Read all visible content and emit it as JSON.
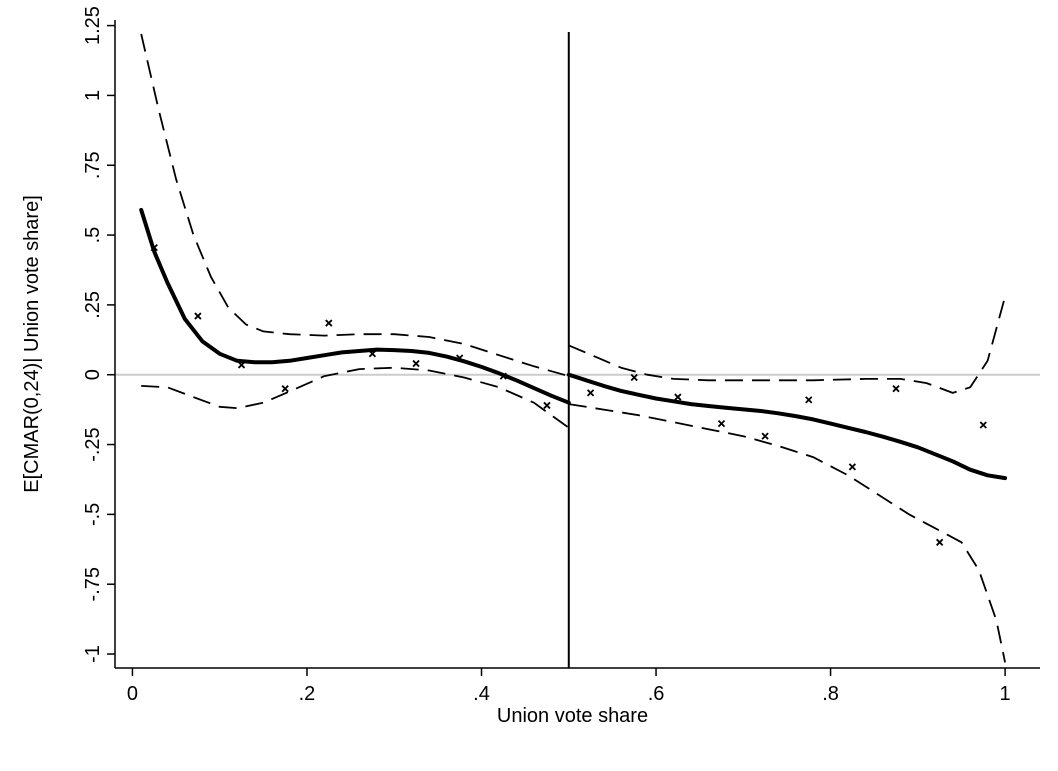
{
  "chart_data": {
    "type": "scatter",
    "title": "",
    "xlabel": "Union vote share",
    "ylabel": "E[CMAR(0,24)| Union vote share]",
    "xlim": [
      -0.02,
      1.04
    ],
    "ylim": [
      -1.05,
      1.27
    ],
    "x_ticks": [
      0,
      0.2,
      0.4,
      0.6,
      0.8,
      1
    ],
    "x_tick_labels": [
      "0",
      ".2",
      ".4",
      ".6",
      ".8",
      "1"
    ],
    "y_ticks": [
      -1,
      -0.75,
      -0.5,
      -0.25,
      0,
      0.25,
      0.5,
      0.75,
      1,
      1.25
    ],
    "y_tick_labels": [
      "-1",
      "-.75",
      "-.5",
      "-.25",
      "0",
      ".25",
      ".5",
      ".75",
      "1",
      "1.25"
    ],
    "threshold_x": 0.5,
    "reference_y": 0,
    "colors": {
      "line": "#000000",
      "reference": "#cccccc",
      "background": "#ffffff"
    },
    "series": [
      {
        "kind": "bin_means",
        "marker": "x",
        "points": [
          [
            0.025,
            0.455
          ],
          [
            0.075,
            0.21
          ],
          [
            0.125,
            0.035
          ],
          [
            0.175,
            -0.05
          ],
          [
            0.225,
            0.185
          ],
          [
            0.275,
            0.075
          ],
          [
            0.325,
            0.04
          ],
          [
            0.375,
            0.06
          ],
          [
            0.425,
            -0.005
          ],
          [
            0.475,
            -0.11
          ],
          [
            0.525,
            -0.065
          ],
          [
            0.575,
            -0.01
          ],
          [
            0.625,
            -0.08
          ],
          [
            0.675,
            -0.175
          ],
          [
            0.725,
            -0.22
          ],
          [
            0.775,
            -0.09
          ],
          [
            0.825,
            -0.33
          ],
          [
            0.875,
            -0.05
          ],
          [
            0.925,
            -0.6
          ],
          [
            0.975,
            -0.18
          ]
        ]
      },
      {
        "kind": "fit_left",
        "line": "solid",
        "points": [
          [
            0.01,
            0.59
          ],
          [
            0.025,
            0.44
          ],
          [
            0.04,
            0.33
          ],
          [
            0.06,
            0.2
          ],
          [
            0.08,
            0.12
          ],
          [
            0.1,
            0.075
          ],
          [
            0.12,
            0.05
          ],
          [
            0.14,
            0.045
          ],
          [
            0.16,
            0.045
          ],
          [
            0.18,
            0.05
          ],
          [
            0.2,
            0.06
          ],
          [
            0.22,
            0.07
          ],
          [
            0.24,
            0.08
          ],
          [
            0.26,
            0.085
          ],
          [
            0.28,
            0.09
          ],
          [
            0.3,
            0.088
          ],
          [
            0.32,
            0.085
          ],
          [
            0.34,
            0.078
          ],
          [
            0.36,
            0.065
          ],
          [
            0.38,
            0.048
          ],
          [
            0.4,
            0.028
          ],
          [
            0.42,
            0.005
          ],
          [
            0.44,
            -0.02
          ],
          [
            0.46,
            -0.048
          ],
          [
            0.48,
            -0.075
          ],
          [
            0.5,
            -0.1
          ]
        ]
      },
      {
        "kind": "fit_right",
        "line": "solid",
        "points": [
          [
            0.5,
            0.0
          ],
          [
            0.52,
            -0.02
          ],
          [
            0.54,
            -0.04
          ],
          [
            0.56,
            -0.058
          ],
          [
            0.58,
            -0.072
          ],
          [
            0.6,
            -0.085
          ],
          [
            0.62,
            -0.095
          ],
          [
            0.64,
            -0.105
          ],
          [
            0.66,
            -0.112
          ],
          [
            0.68,
            -0.118
          ],
          [
            0.7,
            -0.124
          ],
          [
            0.72,
            -0.13
          ],
          [
            0.74,
            -0.138
          ],
          [
            0.76,
            -0.148
          ],
          [
            0.78,
            -0.16
          ],
          [
            0.8,
            -0.175
          ],
          [
            0.82,
            -0.19
          ],
          [
            0.84,
            -0.205
          ],
          [
            0.86,
            -0.222
          ],
          [
            0.88,
            -0.24
          ],
          [
            0.9,
            -0.26
          ],
          [
            0.92,
            -0.285
          ],
          [
            0.94,
            -0.31
          ],
          [
            0.96,
            -0.34
          ],
          [
            0.98,
            -0.36
          ],
          [
            1.0,
            -0.37
          ]
        ]
      },
      {
        "kind": "ci_upper_left",
        "line": "dashed",
        "points": [
          [
            0.01,
            1.22
          ],
          [
            0.03,
            0.95
          ],
          [
            0.05,
            0.7
          ],
          [
            0.07,
            0.5
          ],
          [
            0.09,
            0.35
          ],
          [
            0.11,
            0.24
          ],
          [
            0.13,
            0.18
          ],
          [
            0.15,
            0.155
          ],
          [
            0.18,
            0.145
          ],
          [
            0.22,
            0.14
          ],
          [
            0.26,
            0.145
          ],
          [
            0.3,
            0.145
          ],
          [
            0.34,
            0.135
          ],
          [
            0.38,
            0.11
          ],
          [
            0.42,
            0.07
          ],
          [
            0.46,
            0.03
          ],
          [
            0.5,
            -0.005
          ]
        ]
      },
      {
        "kind": "ci_lower_left",
        "line": "dashed",
        "points": [
          [
            0.01,
            -0.04
          ],
          [
            0.04,
            -0.045
          ],
          [
            0.07,
            -0.08
          ],
          [
            0.1,
            -0.115
          ],
          [
            0.12,
            -0.12
          ],
          [
            0.15,
            -0.1
          ],
          [
            0.18,
            -0.06
          ],
          [
            0.22,
            -0.005
          ],
          [
            0.26,
            0.02
          ],
          [
            0.3,
            0.025
          ],
          [
            0.34,
            0.015
          ],
          [
            0.38,
            -0.01
          ],
          [
            0.42,
            -0.045
          ],
          [
            0.46,
            -0.1
          ],
          [
            0.5,
            -0.19
          ]
        ]
      },
      {
        "kind": "ci_upper_right",
        "line": "dashed",
        "points": [
          [
            0.5,
            0.105
          ],
          [
            0.53,
            0.065
          ],
          [
            0.56,
            0.025
          ],
          [
            0.59,
            0.0
          ],
          [
            0.62,
            -0.015
          ],
          [
            0.66,
            -0.02
          ],
          [
            0.72,
            -0.02
          ],
          [
            0.78,
            -0.02
          ],
          [
            0.84,
            -0.015
          ],
          [
            0.88,
            -0.015
          ],
          [
            0.91,
            -0.03
          ],
          [
            0.94,
            -0.065
          ],
          [
            0.96,
            -0.045
          ],
          [
            0.98,
            0.05
          ],
          [
            1.0,
            0.28
          ]
        ]
      },
      {
        "kind": "ci_lower_right",
        "line": "dashed",
        "points": [
          [
            0.5,
            -0.105
          ],
          [
            0.54,
            -0.125
          ],
          [
            0.58,
            -0.145
          ],
          [
            0.62,
            -0.17
          ],
          [
            0.66,
            -0.195
          ],
          [
            0.7,
            -0.22
          ],
          [
            0.74,
            -0.255
          ],
          [
            0.78,
            -0.295
          ],
          [
            0.82,
            -0.36
          ],
          [
            0.86,
            -0.44
          ],
          [
            0.89,
            -0.5
          ],
          [
            0.92,
            -0.55
          ],
          [
            0.95,
            -0.6
          ],
          [
            0.97,
            -0.7
          ],
          [
            0.99,
            -0.88
          ],
          [
            1.0,
            -1.03
          ]
        ]
      }
    ]
  }
}
